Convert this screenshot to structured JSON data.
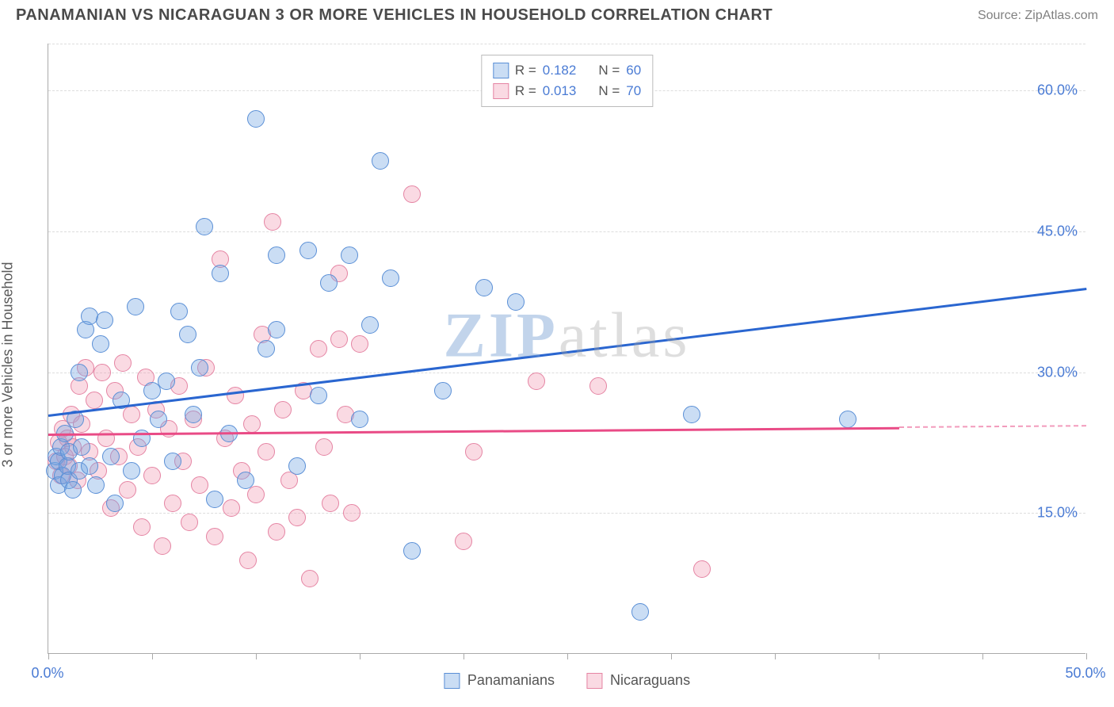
{
  "header": {
    "title": "PANAMANIAN VS NICARAGUAN 3 OR MORE VEHICLES IN HOUSEHOLD CORRELATION CHART",
    "source": "Source: ZipAtlas.com"
  },
  "chart": {
    "type": "scatter",
    "ylabel": "3 or more Vehicles in Household",
    "xlim": [
      0,
      50
    ],
    "ylim": [
      0,
      65
    ],
    "ytick_positions": [
      15,
      30,
      45,
      60
    ],
    "ytick_labels": [
      "15.0%",
      "30.0%",
      "45.0%",
      "60.0%"
    ],
    "xtick_positions": [
      0,
      5,
      10,
      15,
      20,
      25,
      30,
      35,
      40,
      45,
      50
    ],
    "xtick_labels_shown": {
      "0": "0.0%",
      "50": "50.0%"
    },
    "background_color": "#ffffff",
    "grid_color": "#dddddd",
    "axis_color": "#aaaaaa",
    "tick_label_color": "#4a7bd4",
    "watermark": {
      "text_bold": "ZIP",
      "text_light": "atlas",
      "color_bold": "rgba(120,160,210,0.45)",
      "color_light": "rgba(160,160,160,0.35)"
    },
    "series": {
      "panamanians": {
        "label": "Panamanians",
        "fill": "rgba(115,165,225,0.38)",
        "stroke": "#5a8fd6",
        "marker_radius": 11,
        "trend": {
          "color": "#2a66d0",
          "x0": 0,
          "y0": 25.5,
          "x1": 50,
          "y1": 39.0,
          "dash_from_x": 50
        },
        "data": [
          [
            0.3,
            19.5
          ],
          [
            0.4,
            21.0
          ],
          [
            0.5,
            18.0
          ],
          [
            0.5,
            20.5
          ],
          [
            0.6,
            22.0
          ],
          [
            0.7,
            19.0
          ],
          [
            0.8,
            23.5
          ],
          [
            0.9,
            20.0
          ],
          [
            1.0,
            18.5
          ],
          [
            1.0,
            21.5
          ],
          [
            1.2,
            17.5
          ],
          [
            1.3,
            25.0
          ],
          [
            1.5,
            19.5
          ],
          [
            1.5,
            30.0
          ],
          [
            1.6,
            22.0
          ],
          [
            1.8,
            34.5
          ],
          [
            2.0,
            20.0
          ],
          [
            2.0,
            36.0
          ],
          [
            2.3,
            18.0
          ],
          [
            2.5,
            33.0
          ],
          [
            2.7,
            35.5
          ],
          [
            3.0,
            21.0
          ],
          [
            3.2,
            16.0
          ],
          [
            3.5,
            27.0
          ],
          [
            4.0,
            19.5
          ],
          [
            4.2,
            37.0
          ],
          [
            4.5,
            23.0
          ],
          [
            5.0,
            28.0
          ],
          [
            5.3,
            25.0
          ],
          [
            5.7,
            29.0
          ],
          [
            6.0,
            20.5
          ],
          [
            6.3,
            36.5
          ],
          [
            6.7,
            34.0
          ],
          [
            7.0,
            25.5
          ],
          [
            7.3,
            30.5
          ],
          [
            7.5,
            45.5
          ],
          [
            8.0,
            16.5
          ],
          [
            8.3,
            40.5
          ],
          [
            8.7,
            23.5
          ],
          [
            9.5,
            18.5
          ],
          [
            10.0,
            57.0
          ],
          [
            10.5,
            32.5
          ],
          [
            11.0,
            42.5
          ],
          [
            11.0,
            34.5
          ],
          [
            12.0,
            20.0
          ],
          [
            12.5,
            43.0
          ],
          [
            13.0,
            27.5
          ],
          [
            13.5,
            39.5
          ],
          [
            14.5,
            42.5
          ],
          [
            15.0,
            25.0
          ],
          [
            15.5,
            35.0
          ],
          [
            16.0,
            52.5
          ],
          [
            16.5,
            40.0
          ],
          [
            17.5,
            11.0
          ],
          [
            19.0,
            28.0
          ],
          [
            21.0,
            39.0
          ],
          [
            28.5,
            4.5
          ],
          [
            31.0,
            25.5
          ],
          [
            38.5,
            25.0
          ],
          [
            22.5,
            37.5
          ]
        ]
      },
      "nicaraguans": {
        "label": "Nicaraguans",
        "fill": "rgba(240,150,175,0.35)",
        "stroke": "#e584a3",
        "marker_radius": 11,
        "trend": {
          "color": "#e94b86",
          "x0": 0,
          "y0": 23.5,
          "x1": 41,
          "y1": 24.2,
          "dash_from_x": 41
        },
        "data": [
          [
            0.4,
            20.5
          ],
          [
            0.5,
            22.5
          ],
          [
            0.6,
            19.0
          ],
          [
            0.7,
            24.0
          ],
          [
            0.8,
            21.0
          ],
          [
            0.9,
            23.0
          ],
          [
            1.0,
            20.0
          ],
          [
            1.1,
            25.5
          ],
          [
            1.2,
            22.0
          ],
          [
            1.4,
            18.5
          ],
          [
            1.5,
            28.5
          ],
          [
            1.6,
            24.5
          ],
          [
            1.8,
            30.5
          ],
          [
            2.0,
            21.5
          ],
          [
            2.2,
            27.0
          ],
          [
            2.4,
            19.5
          ],
          [
            2.6,
            30.0
          ],
          [
            2.8,
            23.0
          ],
          [
            3.0,
            15.5
          ],
          [
            3.2,
            28.0
          ],
          [
            3.4,
            21.0
          ],
          [
            3.6,
            31.0
          ],
          [
            3.8,
            17.5
          ],
          [
            4.0,
            25.5
          ],
          [
            4.3,
            22.0
          ],
          [
            4.5,
            13.5
          ],
          [
            4.7,
            29.5
          ],
          [
            5.0,
            19.0
          ],
          [
            5.2,
            26.0
          ],
          [
            5.5,
            11.5
          ],
          [
            5.8,
            24.0
          ],
          [
            6.0,
            16.0
          ],
          [
            6.3,
            28.5
          ],
          [
            6.5,
            20.5
          ],
          [
            6.8,
            14.0
          ],
          [
            7.0,
            25.0
          ],
          [
            7.3,
            18.0
          ],
          [
            7.6,
            30.5
          ],
          [
            8.0,
            12.5
          ],
          [
            8.3,
            42.0
          ],
          [
            8.5,
            23.0
          ],
          [
            8.8,
            15.5
          ],
          [
            9.0,
            27.5
          ],
          [
            9.3,
            19.5
          ],
          [
            9.6,
            10.0
          ],
          [
            9.8,
            24.5
          ],
          [
            10.0,
            17.0
          ],
          [
            10.3,
            34.0
          ],
          [
            10.5,
            21.5
          ],
          [
            10.8,
            46.0
          ],
          [
            11.0,
            13.0
          ],
          [
            11.3,
            26.0
          ],
          [
            11.6,
            18.5
          ],
          [
            12.0,
            14.5
          ],
          [
            12.3,
            28.0
          ],
          [
            12.6,
            8.0
          ],
          [
            13.0,
            32.5
          ],
          [
            13.3,
            22.0
          ],
          [
            13.6,
            16.0
          ],
          [
            14.0,
            33.5
          ],
          [
            14.3,
            25.5
          ],
          [
            14.6,
            15.0
          ],
          [
            15.0,
            33.0
          ],
          [
            17.5,
            49.0
          ],
          [
            20.0,
            12.0
          ],
          [
            20.5,
            21.5
          ],
          [
            23.5,
            29.0
          ],
          [
            26.5,
            28.5
          ],
          [
            31.5,
            9.0
          ],
          [
            14.0,
            40.5
          ]
        ]
      }
    },
    "legend_top": [
      {
        "swatch": "panamanians",
        "r_label": "R =",
        "r": "0.182",
        "n_label": "N =",
        "n": "60"
      },
      {
        "swatch": "nicaraguans",
        "r_label": "R =",
        "r": "0.013",
        "n_label": "N =",
        "n": "70"
      }
    ],
    "legend_bottom": [
      {
        "swatch": "panamanians",
        "label": "Panamanians"
      },
      {
        "swatch": "nicaraguans",
        "label": "Nicaraguans"
      }
    ]
  }
}
